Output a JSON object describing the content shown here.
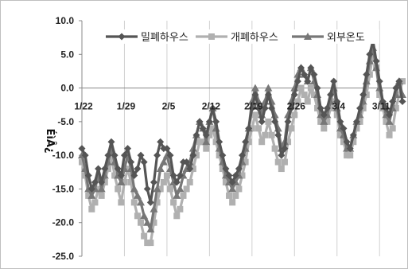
{
  "chart_data": {
    "type": "line",
    "title": "",
    "ylabel": "É­ìÂ¿",
    "ylim": [
      -25,
      10
    ],
    "yticks": [
      "10.0",
      "5.0",
      "0.0",
      "-5.0",
      "-10.0",
      "-15.0",
      "-20.0",
      "-25.0"
    ],
    "ytick_values": [
      10,
      5,
      0,
      -5,
      -10,
      -15,
      -20,
      -25
    ],
    "x": [
      1,
      2,
      3,
      4,
      5,
      6,
      7,
      8,
      9,
      10,
      11,
      12,
      13,
      14,
      15,
      16,
      17,
      18,
      19,
      20,
      21,
      22,
      23,
      24,
      25,
      26,
      27,
      28,
      29,
      30,
      31,
      32,
      33,
      34,
      35,
      36,
      37,
      38,
      39,
      40,
      41,
      42,
      43,
      44,
      45,
      46,
      47,
      48,
      49,
      50,
      51,
      52,
      53,
      54,
      55,
      56,
      57,
      58,
      59,
      60,
      61,
      62,
      63,
      64,
      65,
      66,
      67,
      68,
      69,
      70,
      71,
      72,
      73,
      74,
      75,
      76,
      77,
      78,
      79,
      80,
      81,
      82,
      83,
      84,
      85,
      86,
      87,
      88,
      89,
      90,
      91,
      92,
      93,
      94,
      95,
      96,
      97,
      98,
      99
    ],
    "xtick_labels": [
      "1/22",
      "1/29",
      "2/5",
      "2/12",
      "2/19",
      "2/26",
      "3/4",
      "3/11",
      "3/18"
    ],
    "xtick_positions": [
      1,
      14,
      27,
      40,
      53,
      66,
      79,
      92,
      105
    ],
    "legend": {
      "position": "top"
    },
    "series": [
      {
        "name": "밀폐하우스",
        "color": "#555555",
        "marker": "diamond",
        "values": [
          -9,
          -10,
          -13,
          -15,
          -14,
          -12,
          -14,
          -12,
          -10,
          -8,
          -10,
          -12,
          -13,
          -10,
          -9,
          -11,
          -13,
          -12,
          -10,
          -11,
          -15,
          -17,
          -14,
          -10,
          -8,
          -9,
          -9,
          -10,
          -13,
          -14,
          -13,
          -11,
          -11,
          -12,
          -10,
          -7,
          -5,
          -6,
          -7,
          -5,
          -3,
          -5,
          -8,
          -10,
          -12,
          -13,
          -14,
          -13,
          -12,
          -10,
          -8,
          -6,
          -3,
          -1,
          -3,
          -5,
          -3,
          -1,
          -3,
          -5,
          -7,
          -10,
          -9,
          -5,
          -3,
          -1,
          1,
          3,
          2,
          1,
          3,
          2,
          0,
          -3,
          -4,
          -3,
          -1,
          1,
          -2,
          -5,
          -6,
          -8,
          -9,
          -7,
          -5,
          -3,
          -1,
          2,
          5,
          7,
          4,
          1,
          -2,
          -3,
          -4,
          -2,
          0,
          1,
          -2
        ]
      },
      {
        "name": "개폐하우스",
        "color": "#b0b0b0",
        "marker": "square",
        "values": [
          -11,
          -13,
          -16,
          -18,
          -17,
          -15,
          -16,
          -14,
          -12,
          -10,
          -13,
          -15,
          -17,
          -14,
          -12,
          -14,
          -17,
          -19,
          -20,
          -22,
          -23,
          -23,
          -20,
          -17,
          -15,
          -14,
          -13,
          -15,
          -17,
          -19,
          -18,
          -16,
          -15,
          -14,
          -12,
          -10,
          -8,
          -8,
          -9,
          -7,
          -6,
          -8,
          -10,
          -12,
          -14,
          -16,
          -17,
          -16,
          -15,
          -13,
          -11,
          -8,
          -6,
          -4,
          -6,
          -8,
          -7,
          -5,
          -7,
          -9,
          -11,
          -12,
          -11,
          -8,
          -6,
          -4,
          -2,
          0,
          -1,
          -2,
          0,
          -1,
          -3,
          -5,
          -6,
          -5,
          -3,
          -2,
          -4,
          -7,
          -8,
          -10,
          -10,
          -8,
          -6,
          -5,
          -3,
          -1,
          2,
          5,
          3,
          -1,
          -3,
          -5,
          -7,
          -6,
          -3,
          -1,
          1
        ]
      },
      {
        "name": "외부온도",
        "color": "#777777",
        "marker": "triangle",
        "values": [
          -10,
          -12,
          -15,
          -16,
          -15,
          -13,
          -15,
          -13,
          -11,
          -9,
          -11,
          -13,
          -14,
          -12,
          -10,
          -12,
          -15,
          -16,
          -17,
          -19,
          -20,
          -21,
          -18,
          -15,
          -12,
          -11,
          -10,
          -12,
          -14,
          -16,
          -15,
          -13,
          -12,
          -11,
          -9,
          -7,
          -5,
          -6,
          -8,
          -5,
          -3,
          -6,
          -9,
          -11,
          -13,
          -14,
          -15,
          -14,
          -13,
          -11,
          -9,
          -6,
          -2,
          0,
          -2,
          -4,
          -2,
          0,
          -2,
          -4,
          -6,
          -9,
          -8,
          -4,
          -2,
          0,
          2,
          3,
          2,
          1,
          3,
          1,
          -1,
          -4,
          -5,
          -4,
          -2,
          0,
          -3,
          -6,
          -7,
          -9,
          -9,
          -7,
          -5,
          -4,
          -2,
          1,
          4,
          6,
          3,
          0,
          -2,
          -4,
          -5,
          -3,
          -1,
          1,
          -1
        ]
      }
    ]
  }
}
